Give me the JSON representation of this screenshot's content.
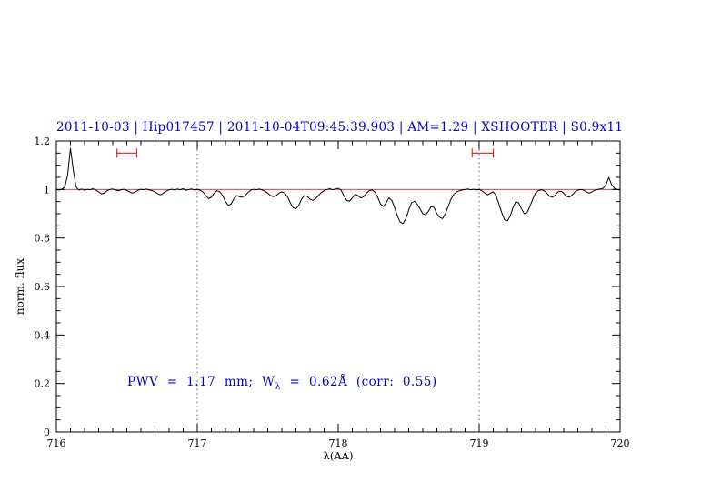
{
  "title": "2011-10-03 | Hip017457 | 2011-10-04T09:45:39.903 | AM=1.29 | XSHOOTER | S0.9x11",
  "annotation": {
    "part1": "PWV  =  1.17  mm;  W",
    "sub": "λ",
    "part2": "  =  0.62Å  (corr:  0.55)"
  },
  "colors": {
    "title_blue": "#0000cd",
    "continuum": "#c03030",
    "marker": "#cc2222",
    "spectrum": "#000000",
    "guide": "#444444"
  },
  "chart_data": {
    "type": "line",
    "title": "2011-10-03 | Hip017457 | 2011-10-04T09:45:39.903 | AM=1.29 | XSHOOTER | S0.9x11",
    "xlabel": "λ(AA)",
    "ylabel": "norm. flux",
    "xlim": [
      716,
      720
    ],
    "ylim": [
      0,
      1.2
    ],
    "xticks": [
      716,
      717,
      718,
      719,
      720
    ],
    "xtick_labels": [
      "716",
      "717",
      "718",
      "719",
      "720"
    ],
    "yticks": [
      0,
      0.2,
      0.4,
      0.6,
      0.8,
      1,
      1.2
    ],
    "ytick_labels": [
      "0",
      "0.2",
      "0.4",
      "0.6",
      "0.8",
      "1",
      "1.2"
    ],
    "x_minor": 0.1,
    "y_minor": 0.05,
    "grid": false,
    "legend": "none",
    "guide_lines_x": [
      717,
      719
    ],
    "continuum_level": 1.0,
    "region_markers": [
      {
        "x1": 716.43,
        "x2": 716.57,
        "y": 1.15
      },
      {
        "x1": 718.95,
        "x2": 719.1,
        "y": 1.15
      }
    ],
    "series": [
      {
        "name": "normalized spectrum",
        "x_start": 716.0,
        "x_step": 0.02,
        "y": [
          1.0,
          0.998,
          1.002,
          1.01,
          1.06,
          1.17,
          1.08,
          1.01,
          0.998,
          1.002,
          0.997,
          1.001,
          0.999,
          1.003,
          0.998,
          0.99,
          0.982,
          0.985,
          0.995,
          1.0,
          1.002,
          0.998,
          0.995,
          0.999,
          1.001,
          0.996,
          0.99,
          0.985,
          0.99,
          0.997,
          1.001,
          0.999,
          1.002,
          0.998,
          0.995,
          0.99,
          0.982,
          0.978,
          0.985,
          0.993,
          0.999,
          1.001,
          0.998,
          1.002,
          0.999,
          1.003,
          0.997,
          1.0,
          1.002,
          0.998,
          1.0,
          0.997,
          0.99,
          0.975,
          0.962,
          0.968,
          0.985,
          0.995,
          0.99,
          0.975,
          0.95,
          0.935,
          0.94,
          0.962,
          0.975,
          0.97,
          0.968,
          0.975,
          0.988,
          0.997,
          1.001,
          0.999,
          1.002,
          0.998,
          0.993,
          0.985,
          0.975,
          0.97,
          0.975,
          0.985,
          0.99,
          0.985,
          0.97,
          0.945,
          0.925,
          0.92,
          0.935,
          0.96,
          0.975,
          0.972,
          0.96,
          0.955,
          0.962,
          0.975,
          0.988,
          0.995,
          1.0,
          1.003,
          0.999,
          1.002,
          1.005,
          0.998,
          0.975,
          0.955,
          0.952,
          0.965,
          0.98,
          0.975,
          0.965,
          0.97,
          0.985,
          0.995,
          0.998,
          0.99,
          0.968,
          0.94,
          0.93,
          0.945,
          0.965,
          0.955,
          0.925,
          0.89,
          0.865,
          0.86,
          0.88,
          0.915,
          0.945,
          0.952,
          0.94,
          0.92,
          0.9,
          0.895,
          0.91,
          0.93,
          0.925,
          0.9,
          0.885,
          0.88,
          0.9,
          0.93,
          0.96,
          0.98,
          0.99,
          0.995,
          0.998,
          1.0,
          1.002,
          0.999,
          1.001,
          0.998,
          1.0,
          0.995,
          0.985,
          0.978,
          0.985,
          0.99,
          0.975,
          0.94,
          0.905,
          0.875,
          0.87,
          0.89,
          0.925,
          0.95,
          0.945,
          0.92,
          0.9,
          0.905,
          0.93,
          0.96,
          0.985,
          0.995,
          0.999,
          0.995,
          0.985,
          0.972,
          0.968,
          0.978,
          0.99,
          0.993,
          0.985,
          0.972,
          0.968,
          0.978,
          0.99,
          0.997,
          1.0,
          0.998,
          0.99,
          0.985,
          0.99,
          0.997,
          1.0,
          1.002,
          1.005,
          1.02,
          1.05,
          1.02,
          1.005,
          1.0,
          0.998
        ]
      }
    ]
  }
}
